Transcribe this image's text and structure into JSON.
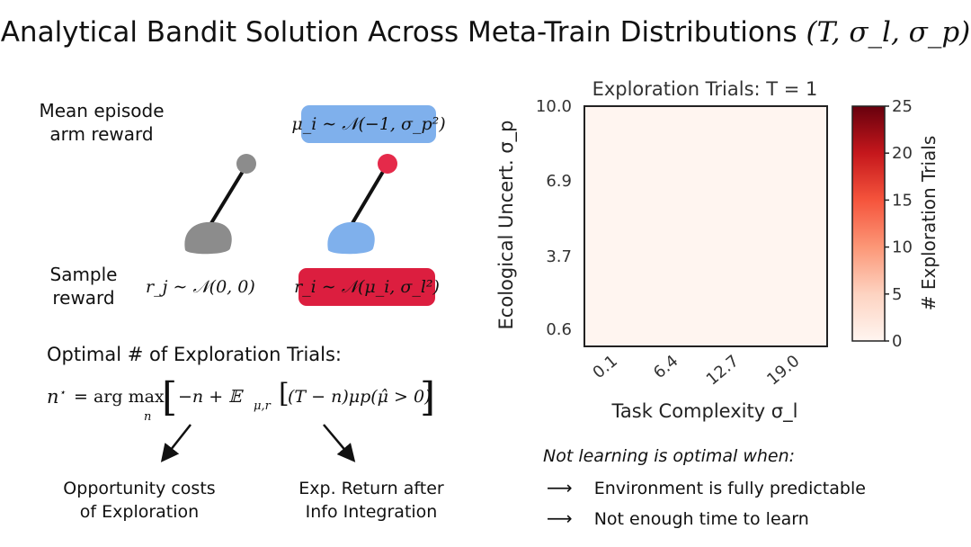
{
  "title": {
    "text": "Analytical Bandit Solution Across Meta-Train Distributions",
    "math": "(T, σ_l, σ_p)"
  },
  "bandit": {
    "row1_label": [
      "Mean episode",
      "arm reward"
    ],
    "row2_label": [
      "Sample",
      "reward"
    ],
    "mu_formula": "μ_i ∼ 𝒩(−1, σ_p²)",
    "rj_formula": "r_j ∼ 𝒩(0, 0)",
    "ri_formula": "r_i ∼ 𝒩(μ_i, σ_l²)",
    "colors": {
      "left_arm": "#8c8c8c",
      "right_arm": "#7fb0ec",
      "right_knob": "#e52a4a",
      "mu_box": "#7fb0ec",
      "ri_box": "#dc1e3f"
    }
  },
  "optimal": {
    "heading": "Optimal # of Exploration Trials:",
    "lhs": "n",
    "eq": "= arg max",
    "sub_n": "n",
    "bracket_content": "−n + 𝔼",
    "sub_mur": "μ,r",
    "inner": "(T − n)μp(μ̂ > 0)",
    "left_note": [
      "Opportunity costs",
      "of Exploration"
    ],
    "right_note": [
      "Exp. Return after",
      "Info Integration"
    ]
  },
  "chart_data": {
    "type": "heatmap",
    "title": "Exploration Trials: T = 1",
    "xlabel": "Task Complexity σ_l",
    "ylabel": "Ecological Uncert. σ_p",
    "x_ticks": [
      "0.1",
      "6.4",
      "12.7",
      "19.0"
    ],
    "y_ticks": [
      "10.0",
      "6.9",
      "3.7",
      "0.6"
    ],
    "values": [
      [
        0,
        0,
        0,
        0
      ],
      [
        0,
        0,
        0,
        0
      ],
      [
        0,
        0,
        0,
        0
      ],
      [
        0,
        0,
        0,
        0
      ]
    ],
    "colorbar": {
      "label": "# Exploration Trials",
      "ticks": [
        "0",
        "5",
        "10",
        "15",
        "20",
        "25"
      ],
      "range": [
        0,
        25
      ],
      "cmap": "Reds"
    }
  },
  "notes": {
    "heading": "Not learning is optimal when:",
    "items": [
      "Environment is fully predictable",
      "Not enough time to learn"
    ]
  }
}
